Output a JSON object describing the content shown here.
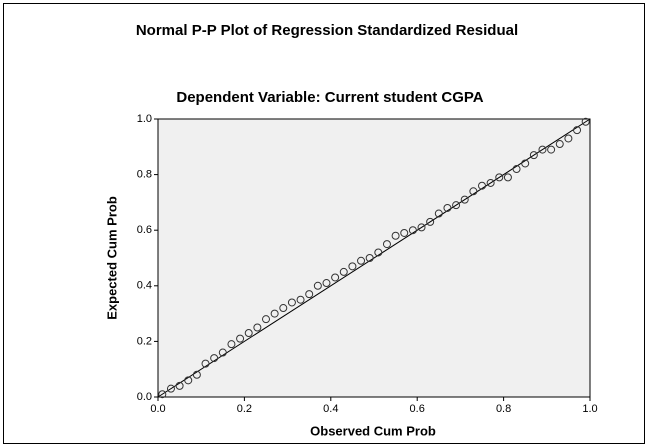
{
  "chart_data": {
    "type": "scatter",
    "title": "Normal P-P Plot of Regression Standardized Residual",
    "subtitle": "Dependent Variable: Current student CGPA",
    "xlabel": "Observed Cum Prob",
    "ylabel": "Expected Cum Prob",
    "x": [
      0.01,
      0.03,
      0.05,
      0.07,
      0.09,
      0.11,
      0.13,
      0.15,
      0.17,
      0.19,
      0.21,
      0.23,
      0.25,
      0.27,
      0.29,
      0.31,
      0.33,
      0.35,
      0.37,
      0.39,
      0.41,
      0.43,
      0.45,
      0.47,
      0.49,
      0.51,
      0.53,
      0.55,
      0.57,
      0.59,
      0.61,
      0.63,
      0.65,
      0.67,
      0.69,
      0.71,
      0.73,
      0.75,
      0.77,
      0.79,
      0.81,
      0.83,
      0.85,
      0.87,
      0.89,
      0.91,
      0.93,
      0.95,
      0.97,
      0.99
    ],
    "values": [
      0.01,
      0.03,
      0.04,
      0.06,
      0.08,
      0.12,
      0.14,
      0.16,
      0.19,
      0.21,
      0.23,
      0.25,
      0.28,
      0.3,
      0.32,
      0.34,
      0.35,
      0.37,
      0.4,
      0.41,
      0.43,
      0.45,
      0.47,
      0.49,
      0.5,
      0.52,
      0.55,
      0.58,
      0.59,
      0.6,
      0.61,
      0.63,
      0.66,
      0.68,
      0.69,
      0.71,
      0.74,
      0.76,
      0.77,
      0.79,
      0.79,
      0.82,
      0.84,
      0.87,
      0.89,
      0.89,
      0.91,
      0.93,
      0.96,
      0.99
    ],
    "color": "#333333",
    "xlim": [
      0,
      1
    ],
    "ylim": [
      0,
      1
    ],
    "xticks": [
      {
        "value": 0,
        "label": "0.0"
      },
      0.2,
      0.4,
      0.6,
      0.8,
      {
        "value": 1,
        "label": "1.0"
      }
    ],
    "yticks": [
      {
        "value": 0,
        "label": "0.0"
      },
      0.2,
      0.4,
      0.6,
      0.8,
      {
        "value": 1,
        "label": "1.0"
      }
    ],
    "grid": false
  }
}
